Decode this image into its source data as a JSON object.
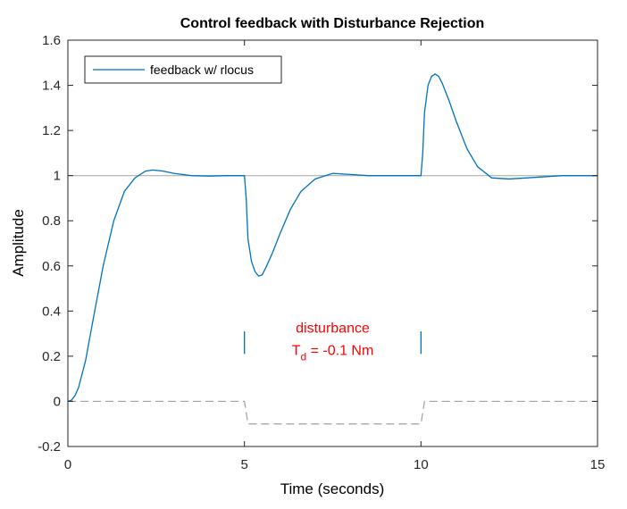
{
  "chart_data": {
    "type": "line",
    "title": "Control feedback with Disturbance Rejection",
    "xlabel": "Time (seconds)",
    "ylabel": "Amplitude",
    "xlim": [
      0,
      15
    ],
    "ylim": [
      -0.2,
      1.6
    ],
    "xticks": [
      0,
      5,
      10,
      15
    ],
    "yticks": [
      -0.2,
      0,
      0.2,
      0.4,
      0.6,
      0.8,
      1,
      1.2,
      1.4,
      1.6
    ],
    "grid": false,
    "legend": {
      "location": "top-left",
      "entries": [
        "feedback w/ rlocus"
      ]
    },
    "series": [
      {
        "name": "feedback w/ rlocus",
        "color": "#0072BD",
        "x": [
          0,
          0.1,
          0.2,
          0.3,
          0.5,
          0.7,
          1.0,
          1.3,
          1.6,
          1.9,
          2.2,
          2.4,
          2.7,
          3.0,
          3.5,
          4.0,
          4.5,
          5.0,
          5.05,
          5.1,
          5.2,
          5.3,
          5.4,
          5.5,
          5.6,
          5.8,
          6.0,
          6.3,
          6.6,
          7.0,
          7.5,
          8.0,
          8.5,
          9.0,
          9.5,
          10.0,
          10.05,
          10.1,
          10.2,
          10.3,
          10.4,
          10.5,
          10.6,
          10.8,
          11.0,
          11.3,
          11.6,
          12.0,
          12.5,
          13.0,
          13.5,
          14.0,
          14.5,
          15.0
        ],
        "y": [
          0,
          0.005,
          0.025,
          0.06,
          0.18,
          0.35,
          0.6,
          0.8,
          0.93,
          0.99,
          1.02,
          1.025,
          1.02,
          1.01,
          1.0,
          0.998,
          1.0,
          1.0,
          0.9,
          0.72,
          0.62,
          0.575,
          0.555,
          0.56,
          0.59,
          0.66,
          0.74,
          0.85,
          0.93,
          0.985,
          1.01,
          1.005,
          1.0,
          1.0,
          1.0,
          1.0,
          1.1,
          1.28,
          1.4,
          1.44,
          1.45,
          1.44,
          1.41,
          1.33,
          1.24,
          1.12,
          1.04,
          0.99,
          0.985,
          0.99,
          0.995,
          1.0,
          1.0,
          1.0
        ]
      },
      {
        "name": "",
        "color": "#a0a0a0",
        "style": "dashed",
        "x": [
          0,
          5.0,
          5.1,
          10.0,
          10.1,
          15
        ],
        "y": [
          0,
          0,
          -0.1,
          -0.1,
          0,
          0
        ]
      },
      {
        "name": "",
        "color": "#b0b0b0",
        "style": "solid",
        "x": [
          0,
          15
        ],
        "y": [
          1,
          1
        ]
      }
    ],
    "annotations": [
      {
        "text": "disturbance",
        "x": 7.5,
        "y": 0.305,
        "color": "#ff0000"
      },
      {
        "text": "T",
        "sub": "d",
        "rest": " = -0.1 Nm",
        "x": 7.5,
        "y": 0.205,
        "color": "#ff0000"
      }
    ],
    "markers": [
      {
        "x": 5,
        "y0": 0.21,
        "y1": 0.31,
        "color": "#0072BD"
      },
      {
        "x": 10,
        "y0": 0.21,
        "y1": 0.31,
        "color": "#0072BD"
      }
    ]
  }
}
